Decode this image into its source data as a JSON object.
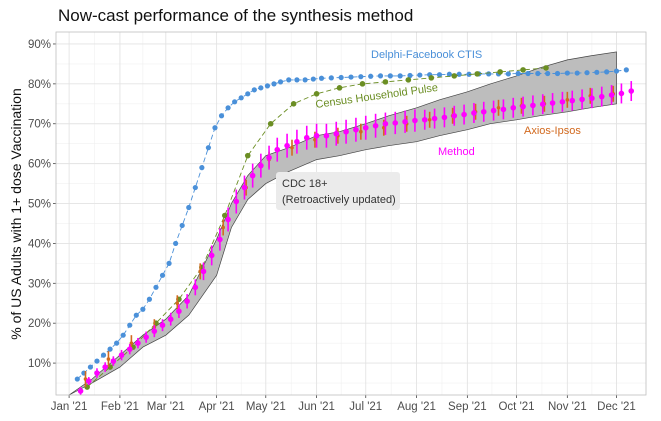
{
  "chart_data": {
    "type": "line",
    "title": "Now-cast performance of the synthesis method",
    "xlabel": "",
    "ylabel": "% of US Adults with 1+ dose Vaccination",
    "x_domain": [
      "2020-12-24",
      "2021-12-19"
    ],
    "ylim": [
      2,
      93
    ],
    "x_ticks": [
      {
        "date": "2021-01-01",
        "label": "Jan '21"
      },
      {
        "date": "2021-02-01",
        "label": "Feb '21"
      },
      {
        "date": "2021-03-01",
        "label": "Mar '21"
      },
      {
        "date": "2021-04-01",
        "label": "Apr '21"
      },
      {
        "date": "2021-05-01",
        "label": "May '21"
      },
      {
        "date": "2021-06-01",
        "label": "Jun '21"
      },
      {
        "date": "2021-07-01",
        "label": "Jul '21"
      },
      {
        "date": "2021-08-01",
        "label": "Aug '21"
      },
      {
        "date": "2021-09-01",
        "label": "Sep '21"
      },
      {
        "date": "2021-10-01",
        "label": "Oct '21"
      },
      {
        "date": "2021-11-01",
        "label": "Nov '21"
      },
      {
        "date": "2021-12-01",
        "label": "Dec '21"
      }
    ],
    "y_ticks": [
      {
        "value": 10,
        "label": "10%"
      },
      {
        "value": 20,
        "label": "20%"
      },
      {
        "value": 30,
        "label": "30%"
      },
      {
        "value": 40,
        "label": "40%"
      },
      {
        "value": 50,
        "label": "50%"
      },
      {
        "value": 60,
        "label": "60%"
      },
      {
        "value": 70,
        "label": "70%"
      },
      {
        "value": 80,
        "label": "80%"
      },
      {
        "value": 90,
        "label": "90%"
      }
    ],
    "series": [
      {
        "name": "CDC 18+",
        "label": "CDC 18+",
        "label2": "(Retroactively updated)",
        "style": "band",
        "color": "#bdbdbd",
        "x": [
          "2021-01-01",
          "2021-01-15",
          "2021-02-01",
          "2021-02-15",
          "2021-03-01",
          "2021-03-15",
          "2021-04-01",
          "2021-04-10",
          "2021-04-20",
          "2021-05-01",
          "2021-05-15",
          "2021-06-01",
          "2021-06-15",
          "2021-07-01",
          "2021-07-15",
          "2021-08-01",
          "2021-08-15",
          "2021-09-01",
          "2021-09-15",
          "2021-10-01",
          "2021-10-15",
          "2021-11-01",
          "2021-11-15",
          "2021-12-01"
        ],
        "low": [
          2,
          5,
          9,
          14,
          17,
          22,
          32,
          44,
          51,
          55,
          58,
          61,
          62,
          63.5,
          64.5,
          65.5,
          67,
          68.5,
          70,
          71,
          72,
          73,
          74,
          75
        ],
        "high": [
          2,
          6,
          12,
          17,
          21,
          27,
          41,
          50,
          57,
          62,
          64,
          67,
          68,
          70,
          72,
          74,
          76,
          78,
          80,
          82,
          84,
          86,
          87,
          88
        ]
      },
      {
        "name": "Delphi-Facebook CTIS",
        "label": "Delphi-Facebook CTIS",
        "style": "dashed-points",
        "color": "#4a90d9",
        "x": [
          "2021-01-06",
          "2021-01-10",
          "2021-01-14",
          "2021-01-18",
          "2021-01-22",
          "2021-01-26",
          "2021-01-30",
          "2021-02-03",
          "2021-02-07",
          "2021-02-11",
          "2021-02-15",
          "2021-02-19",
          "2021-02-23",
          "2021-02-27",
          "2021-03-03",
          "2021-03-07",
          "2021-03-11",
          "2021-03-15",
          "2021-03-19",
          "2021-03-23",
          "2021-03-27",
          "2021-03-31",
          "2021-04-04",
          "2021-04-08",
          "2021-04-12",
          "2021-04-16",
          "2021-04-20",
          "2021-04-24",
          "2021-04-28",
          "2021-05-02",
          "2021-05-06",
          "2021-05-10",
          "2021-05-15",
          "2021-05-20",
          "2021-05-25",
          "2021-05-30",
          "2021-06-04",
          "2021-06-10",
          "2021-06-16",
          "2021-06-22",
          "2021-06-28",
          "2021-07-04",
          "2021-07-10",
          "2021-07-16",
          "2021-07-22",
          "2021-07-28",
          "2021-08-03",
          "2021-08-09",
          "2021-08-15",
          "2021-08-21",
          "2021-08-27",
          "2021-09-02",
          "2021-09-08",
          "2021-09-14",
          "2021-09-20",
          "2021-09-26",
          "2021-10-02",
          "2021-10-08",
          "2021-10-14",
          "2021-10-20",
          "2021-10-26",
          "2021-11-01",
          "2021-11-07",
          "2021-11-13",
          "2021-11-19",
          "2021-11-25",
          "2021-12-01",
          "2021-12-07"
        ],
        "y": [
          6,
          7.5,
          9,
          10.5,
          12,
          13.5,
          15,
          17,
          19.5,
          22,
          23.5,
          26,
          29,
          32,
          35,
          40,
          44.5,
          49,
          54,
          59,
          64,
          69,
          72,
          74,
          75.5,
          76.5,
          77.5,
          78.5,
          79,
          79.5,
          80,
          80.5,
          81,
          81,
          81,
          81.2,
          81.4,
          81.5,
          81.6,
          81.7,
          81.8,
          81.9,
          82,
          82,
          82,
          82.1,
          82.2,
          82.3,
          82.3,
          82.4,
          82.4,
          82.4,
          82.5,
          82.5,
          82.5,
          82.5,
          82.6,
          82.6,
          82.6,
          82.6,
          82.6,
          82.7,
          82.7,
          82.8,
          82.9,
          83,
          83.2,
          83.5
        ]
      },
      {
        "name": "Census Household Pulse",
        "label": "Census Household Pulse",
        "style": "dashed-points",
        "color": "#6b8e23",
        "x": [
          "2021-01-12",
          "2021-01-26",
          "2021-02-09",
          "2021-02-23",
          "2021-03-09",
          "2021-03-23",
          "2021-04-06",
          "2021-04-20",
          "2021-05-04",
          "2021-05-18",
          "2021-06-01",
          "2021-06-15",
          "2021-06-29",
          "2021-07-13",
          "2021-07-27",
          "2021-08-10",
          "2021-08-24",
          "2021-09-07",
          "2021-09-21",
          "2021-10-05",
          "2021-10-19"
        ],
        "y": [
          4,
          9,
          14,
          20,
          26,
          34,
          47,
          62,
          70,
          75,
          77.5,
          79,
          80,
          80.5,
          81,
          81.5,
          82,
          82.5,
          83,
          83.5,
          84
        ]
      },
      {
        "name": "Axios-Ipsos",
        "label": "Axios-Ipsos",
        "style": "points-errorbars",
        "color": "#d2691e",
        "x": [
          "2021-01-11",
          "2021-01-25",
          "2021-02-08",
          "2021-02-22",
          "2021-03-08",
          "2021-03-22",
          "2021-04-05",
          "2021-04-19",
          "2021-05-03",
          "2021-05-17",
          "2021-05-31",
          "2021-06-14",
          "2021-06-28",
          "2021-07-12",
          "2021-07-26",
          "2021-08-09",
          "2021-08-23",
          "2021-09-06",
          "2021-09-20",
          "2021-10-04",
          "2021-10-18",
          "2021-11-01",
          "2021-11-15",
          "2021-11-29"
        ],
        "y": [
          6,
          11,
          15,
          19,
          25,
          33,
          44,
          54,
          61,
          64,
          66,
          67,
          68,
          69,
          70,
          71,
          72,
          73,
          74,
          74.5,
          75,
          76,
          77,
          77.5
        ]
      },
      {
        "name": "Method",
        "label": "Method",
        "style": "points-errorbars",
        "color": "#ff00ff",
        "x": [
          "2021-01-08",
          "2021-01-13",
          "2021-01-18",
          "2021-01-23",
          "2021-01-28",
          "2021-02-02",
          "2021-02-07",
          "2021-02-12",
          "2021-02-17",
          "2021-02-22",
          "2021-02-27",
          "2021-03-04",
          "2021-03-09",
          "2021-03-14",
          "2021-03-19",
          "2021-03-24",
          "2021-03-29",
          "2021-04-03",
          "2021-04-08",
          "2021-04-13",
          "2021-04-18",
          "2021-04-23",
          "2021-04-28",
          "2021-05-03",
          "2021-05-08",
          "2021-05-14",
          "2021-05-20",
          "2021-05-26",
          "2021-06-01",
          "2021-06-07",
          "2021-06-13",
          "2021-06-19",
          "2021-06-25",
          "2021-07-01",
          "2021-07-07",
          "2021-07-13",
          "2021-07-19",
          "2021-07-25",
          "2021-07-31",
          "2021-08-06",
          "2021-08-12",
          "2021-08-18",
          "2021-08-24",
          "2021-08-30",
          "2021-09-05",
          "2021-09-11",
          "2021-09-17",
          "2021-09-23",
          "2021-09-29",
          "2021-10-05",
          "2021-10-11",
          "2021-10-17",
          "2021-10-23",
          "2021-10-29",
          "2021-11-04",
          "2021-11-10",
          "2021-11-16",
          "2021-11-22",
          "2021-11-28",
          "2021-12-04",
          "2021-12-10"
        ],
        "y": [
          3,
          5.5,
          7.5,
          9,
          10.5,
          12,
          13.5,
          15,
          16.5,
          18,
          19.5,
          21,
          23,
          25.5,
          29,
          33,
          37,
          41,
          46,
          50.5,
          54,
          57,
          59.5,
          61.5,
          63.5,
          64.5,
          65.5,
          66.5,
          67,
          67,
          67.5,
          68,
          68.5,
          69,
          69.5,
          70,
          70.2,
          70.5,
          70.8,
          71,
          71.3,
          71.6,
          72,
          72.3,
          72.7,
          73,
          73.3,
          73.6,
          74,
          74.3,
          74.6,
          74.9,
          75.2,
          75.5,
          75.8,
          76.1,
          76.4,
          76.8,
          77.2,
          77.6,
          78.2
        ],
        "err": [
          1,
          1,
          1.2,
          1.2,
          1.2,
          1.3,
          1.3,
          1.3,
          1.4,
          1.5,
          1.5,
          1.6,
          1.7,
          1.8,
          2,
          2.2,
          2.5,
          2.8,
          3,
          3,
          3,
          3,
          3,
          3,
          3,
          3,
          3,
          3,
          3,
          3,
          3,
          3,
          3,
          3,
          3,
          2.8,
          2.8,
          2.8,
          2.8,
          2.5,
          2.5,
          2.5,
          2.5,
          2.5,
          2.5,
          2.5,
          2.5,
          2.5,
          2.5,
          2.5,
          2.5,
          2.5,
          2.5,
          2.5,
          2.5,
          2.5,
          2.5,
          2.5,
          2.5,
          2.5,
          2.5
        ]
      }
    ]
  }
}
